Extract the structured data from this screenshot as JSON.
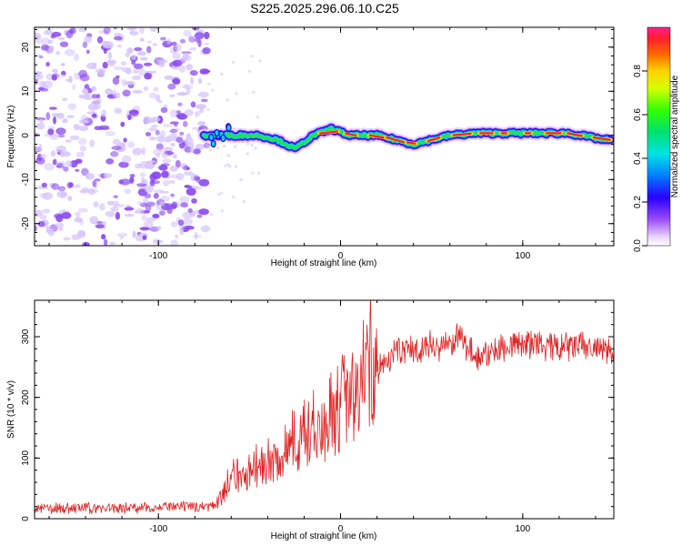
{
  "title": "S225.2025.296.06.10.C25",
  "colors": {
    "snr_line": "#e02020",
    "noise": "#8a4bf0",
    "noise_light": "#d6c4fb"
  },
  "spectrogram": {
    "xlabel": "Height of straight line (km)",
    "ylabel": "Frequency (Hz)",
    "xlim": [
      -168,
      150
    ],
    "ylim": [
      -25,
      24.5
    ],
    "xticks": [
      -100,
      0,
      100
    ],
    "yticks": [
      -20,
      -10,
      0,
      10,
      20
    ],
    "noise_end_km": -73,
    "signal_start_km": -75,
    "signal_track_km": [
      -75,
      -60,
      -45,
      -35,
      -25,
      -15,
      -5,
      5,
      20,
      30,
      40,
      50,
      60,
      75,
      100,
      125,
      145
    ],
    "signal_track_hz": [
      0,
      0,
      0,
      -1,
      -3,
      0,
      1.5,
      0,
      0,
      -1,
      -2,
      -1,
      0,
      0.5,
      0.5,
      0.5,
      -1
    ]
  },
  "colorbar": {
    "label": "Normalized spectral amplitude",
    "ticks": [
      "0.0",
      "0.2",
      "0.4",
      "0.6",
      "0.8"
    ],
    "tick_values": [
      0.0,
      0.2,
      0.4,
      0.6,
      0.8
    ],
    "range": [
      0,
      1
    ]
  },
  "chart_data": {
    "type": "line",
    "title": "S225.2025.296.06.10.C25",
    "xlabel": "Height of straight line (km)",
    "ylabel": "SNR (10 * v/v)",
    "xlim": [
      -168,
      150
    ],
    "ylim": [
      0,
      360
    ],
    "xticks": [
      -100,
      0,
      100
    ],
    "yticks": [
      0,
      100,
      200,
      300
    ],
    "series": [
      {
        "name": "SNR",
        "x": [
          -168,
          -120,
          -80,
          -68,
          -60,
          -50,
          -40,
          -30,
          -20,
          -10,
          0,
          10,
          20,
          30,
          40,
          50,
          60,
          65,
          70,
          75,
          80,
          90,
          100,
          110,
          120,
          130,
          140,
          150
        ],
        "y": [
          17,
          18,
          20,
          22,
          60,
          70,
          85,
          105,
          125,
          140,
          165,
          200,
          245,
          275,
          280,
          285,
          285,
          300,
          285,
          265,
          270,
          285,
          290,
          285,
          280,
          285,
          280,
          275
        ]
      }
    ]
  }
}
